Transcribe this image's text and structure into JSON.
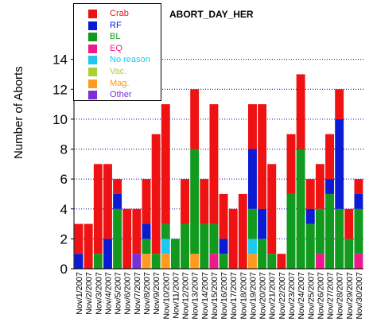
{
  "chart_data": {
    "type": "bar",
    "stacked": true,
    "title": "ABORT_DAY_HER",
    "xlabel": "",
    "ylabel": "Number of Aborts",
    "ylim": [
      0,
      16
    ],
    "yticks": [
      0,
      2,
      4,
      6,
      8,
      10,
      12,
      14
    ],
    "grid": "horizontal dotted",
    "legend_position": "top-left",
    "categories": [
      "Nov/1/2007",
      "Nov/2/2007",
      "Nov/3/2007",
      "Nov/4/2007",
      "Nov/5/2007",
      "Nov/6/2007",
      "Nov/7/2007",
      "Nov/8/2007",
      "Nov/9/2007",
      "Nov/10/2007",
      "Nov/11/2007",
      "Nov/12/2007",
      "Nov/13/2007",
      "Nov/14/2007",
      "Nov/15/2007",
      "Nov/16/2007",
      "Nov/17/2007",
      "Nov/18/2007",
      "Nov/19/2007",
      "Nov/20/2007",
      "Nov/21/2007",
      "Nov/22/2007",
      "Nov/23/2007",
      "Nov/24/2007",
      "Nov/25/2007",
      "Nov/26/2007",
      "Nov/27/2007",
      "Nov/28/2007",
      "Nov/29/2007",
      "Nov/30/2007"
    ],
    "series": [
      {
        "name": "Other",
        "color": "#7b2fd6",
        "values": [
          0,
          0,
          0,
          0,
          0,
          0,
          1,
          0,
          0,
          0,
          0,
          0,
          0,
          0,
          0,
          0,
          0,
          0,
          0,
          0,
          0,
          0,
          0,
          0,
          0,
          0,
          0,
          0,
          0,
          0
        ]
      },
      {
        "name": "Mag.",
        "color": "#ff9a1f",
        "values": [
          0,
          0,
          0,
          0,
          0,
          0,
          0,
          1,
          0,
          1,
          0,
          0,
          1,
          0,
          0,
          0,
          0,
          0,
          1,
          0,
          0,
          0,
          0,
          0,
          0,
          0,
          0,
          0,
          0,
          0
        ]
      },
      {
        "name": "Vac.",
        "color": "#a8d030",
        "values": [
          0,
          0,
          0,
          0,
          0,
          0,
          0,
          0,
          0,
          0,
          0,
          0,
          0,
          0,
          0,
          0,
          0,
          0,
          0,
          0,
          0,
          0,
          0,
          0,
          0,
          0,
          0,
          0,
          0,
          0
        ]
      },
      {
        "name": "No reason",
        "color": "#1ec8f0",
        "values": [
          0,
          0,
          0,
          0,
          0,
          0,
          0,
          0,
          0,
          1,
          0,
          0,
          0,
          0,
          0,
          0,
          0,
          0,
          1,
          0,
          0,
          0,
          0,
          0,
          0,
          0,
          0,
          0,
          0,
          0
        ]
      },
      {
        "name": "EQ",
        "color": "#ee1a8c",
        "values": [
          0,
          0,
          0,
          0,
          0,
          0,
          0,
          0,
          0,
          0,
          0,
          0,
          0,
          0,
          1,
          0,
          0,
          0,
          0,
          0,
          0,
          0,
          0,
          0,
          0,
          1,
          0,
          0,
          0,
          1
        ]
      },
      {
        "name": "BL",
        "color": "#119a1e",
        "values": [
          0,
          0,
          1,
          0,
          4,
          0,
          0,
          1,
          1,
          1,
          2,
          3,
          7,
          3,
          2,
          1,
          0,
          0,
          2,
          2,
          1,
          0,
          5,
          8,
          3,
          3,
          5,
          4,
          2,
          3
        ]
      },
      {
        "name": "RF",
        "color": "#0b1bd4",
        "values": [
          1,
          0,
          0,
          2,
          1,
          0,
          0,
          1,
          0,
          0,
          0,
          0,
          0,
          0,
          0,
          1,
          0,
          0,
          4,
          2,
          0,
          0,
          0,
          0,
          1,
          0,
          1,
          6,
          0,
          1
        ]
      },
      {
        "name": "Crab",
        "color": "#ee1212",
        "values": [
          2,
          3,
          6,
          5,
          1,
          4,
          3,
          3,
          8,
          8,
          0,
          3,
          4,
          3,
          8,
          3,
          4,
          5,
          3,
          7,
          6,
          1,
          4,
          5,
          2,
          3,
          3,
          2,
          2,
          1
        ]
      }
    ]
  }
}
